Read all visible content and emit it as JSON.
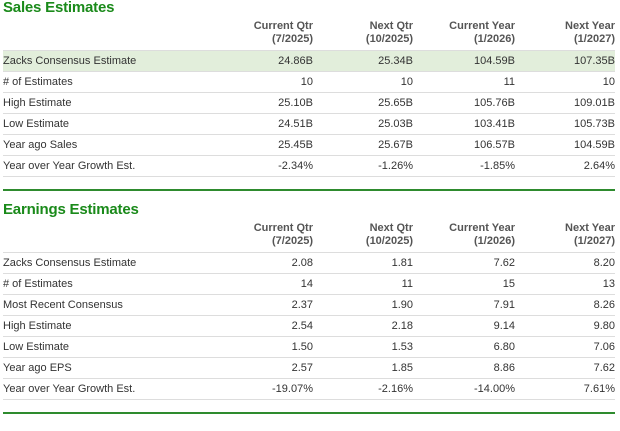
{
  "colors": {
    "title": "#1a8a1a",
    "highlight": "#e2eedb",
    "rule": "#2e8b2e"
  },
  "columns": [
    {
      "label": "Current Qtr",
      "sub": "(7/2025)"
    },
    {
      "label": "Next Qtr",
      "sub": "(10/2025)"
    },
    {
      "label": "Current Year",
      "sub": "(1/2026)"
    },
    {
      "label": "Next Year",
      "sub": "(1/2027)"
    }
  ],
  "sales": {
    "title": "Sales Estimates",
    "rows": [
      {
        "label": "Zacks Consensus Estimate",
        "values": [
          "24.86B",
          "25.34B",
          "104.59B",
          "107.35B"
        ],
        "highlight": true
      },
      {
        "label": "# of Estimates",
        "values": [
          "10",
          "10",
          "11",
          "10"
        ]
      },
      {
        "label": "High Estimate",
        "values": [
          "25.10B",
          "25.65B",
          "105.76B",
          "109.01B"
        ]
      },
      {
        "label": "Low Estimate",
        "values": [
          "24.51B",
          "25.03B",
          "103.41B",
          "105.73B"
        ]
      },
      {
        "label": "Year ago Sales",
        "values": [
          "25.45B",
          "25.67B",
          "106.57B",
          "104.59B"
        ]
      },
      {
        "label": "Year over Year Growth Est.",
        "values": [
          "-2.34%",
          "-1.26%",
          "-1.85%",
          "2.64%"
        ]
      }
    ]
  },
  "earnings": {
    "title": "Earnings Estimates",
    "rows": [
      {
        "label": "Zacks Consensus Estimate",
        "values": [
          "2.08",
          "1.81",
          "7.62",
          "8.20"
        ]
      },
      {
        "label": "# of Estimates",
        "values": [
          "14",
          "11",
          "15",
          "13"
        ]
      },
      {
        "label": "Most Recent Consensus",
        "values": [
          "2.37",
          "1.90",
          "7.91",
          "8.26"
        ]
      },
      {
        "label": "High Estimate",
        "values": [
          "2.54",
          "2.18",
          "9.14",
          "9.80"
        ]
      },
      {
        "label": "Low Estimate",
        "values": [
          "1.50",
          "1.53",
          "6.80",
          "7.06"
        ]
      },
      {
        "label": "Year ago EPS",
        "values": [
          "2.57",
          "1.85",
          "8.86",
          "7.62"
        ]
      },
      {
        "label": "Year over Year Growth Est.",
        "values": [
          "-19.07%",
          "-2.16%",
          "-14.00%",
          "7.61%"
        ]
      }
    ]
  }
}
